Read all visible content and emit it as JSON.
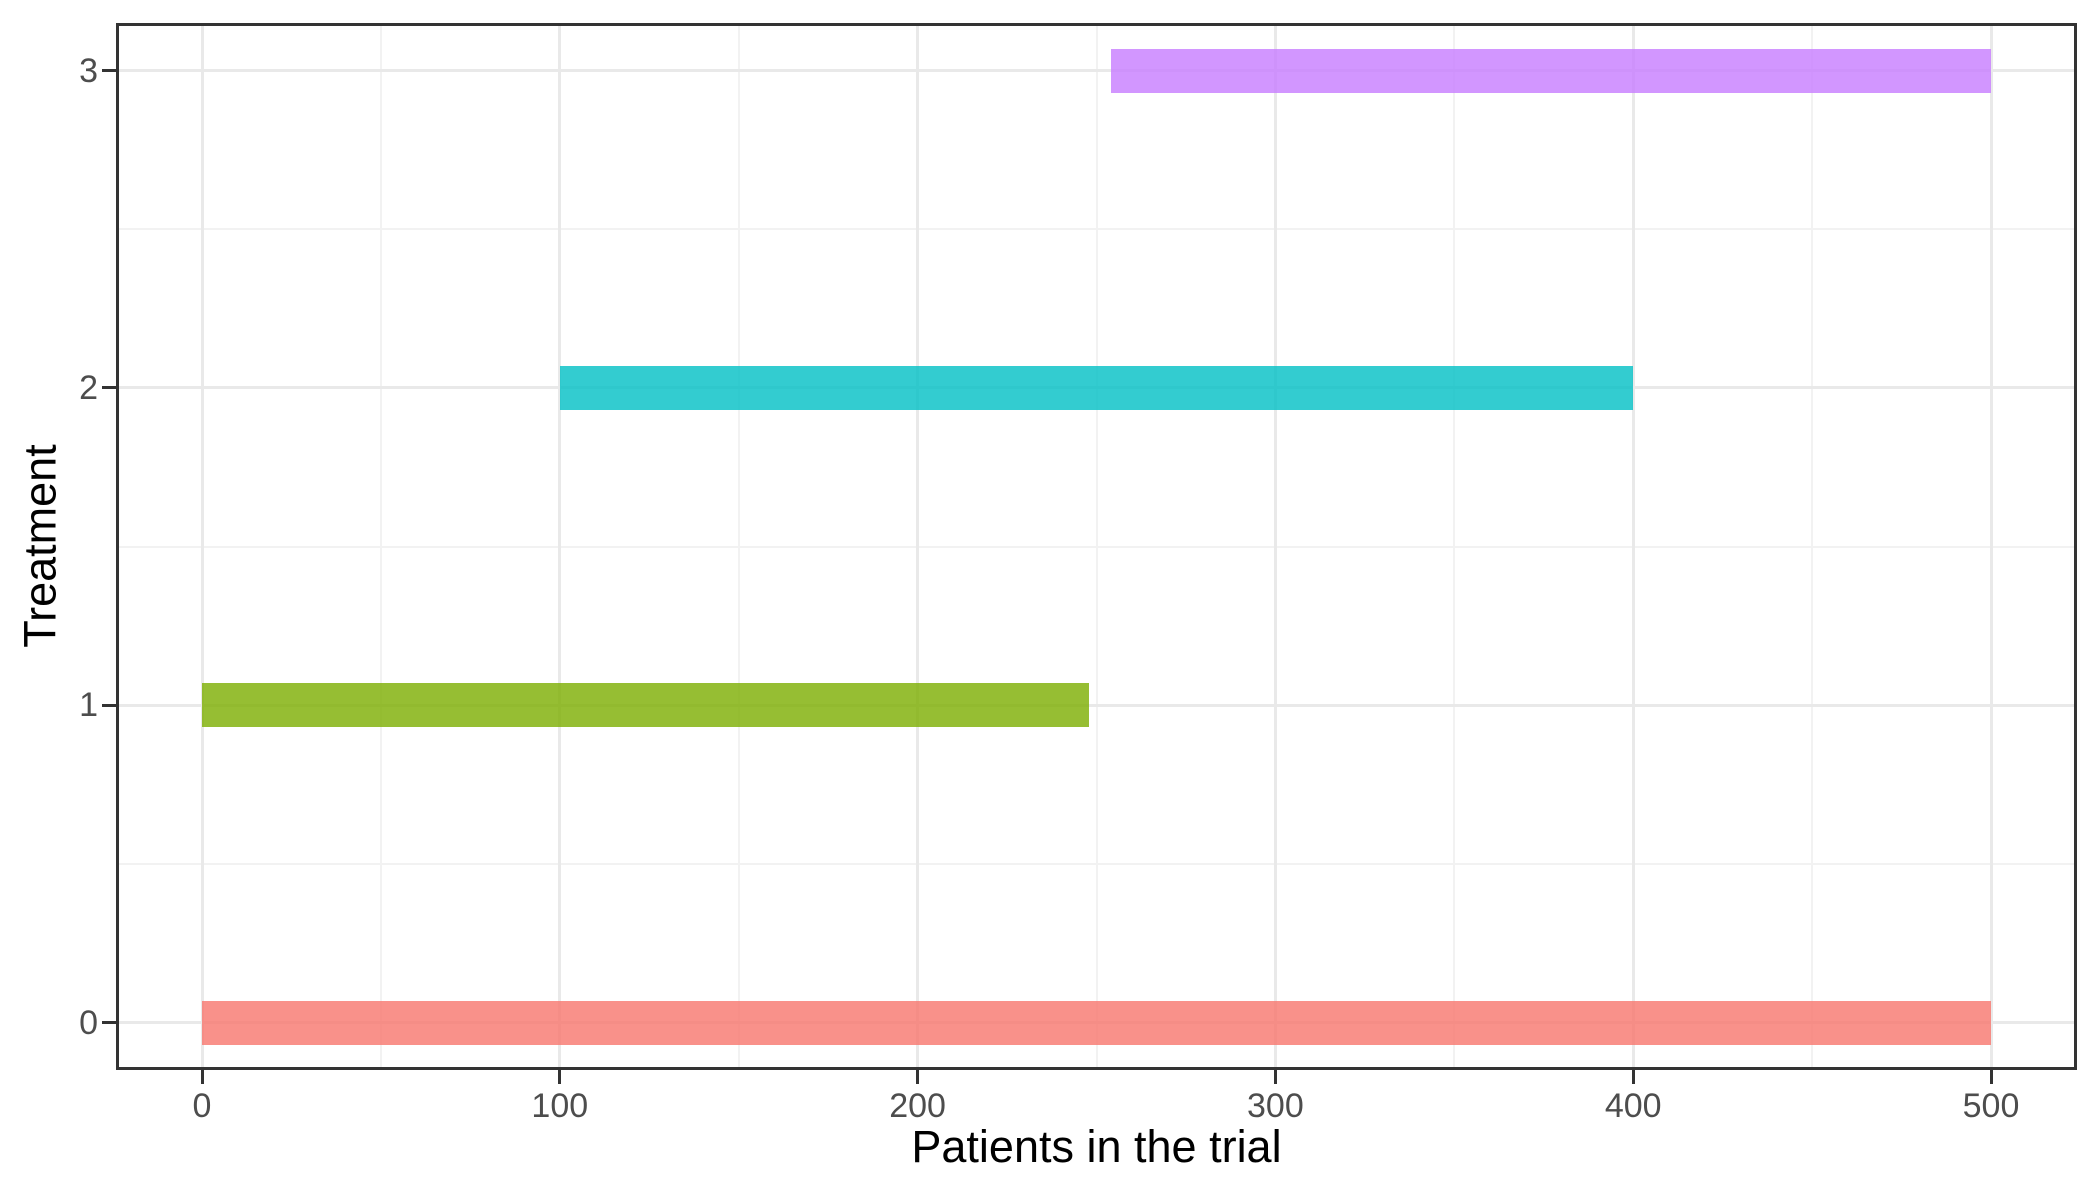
{
  "chart_data": {
    "type": "bar",
    "orientation": "horizontal",
    "title": "",
    "xlabel": "Patients in the trial",
    "ylabel": "Treatment",
    "x_ticks": [
      0,
      100,
      200,
      300,
      400,
      500
    ],
    "y_ticks": [
      0,
      1,
      2,
      3
    ],
    "xlim": [
      0,
      500
    ],
    "ylim": [
      0,
      3
    ],
    "expansion": "5% on both axes (ggplot default)",
    "grid": "major and minor gridlines, light grey on white panel, dark panel border (theme_bw style)",
    "legend": "none",
    "bar_alpha": 0.8,
    "bar_thickness_units": 0.14,
    "segments": [
      {
        "treatment": 0,
        "start": 0,
        "end": 500,
        "color": "#F8766D"
      },
      {
        "treatment": 1,
        "start": 0,
        "end": 248,
        "color": "#7CAE00"
      },
      {
        "treatment": 2,
        "start": 100,
        "end": 400,
        "color": "#00BFC4"
      },
      {
        "treatment": 3,
        "start": 254,
        "end": 500,
        "color": "#C77CFF"
      }
    ]
  },
  "style": {
    "background": "#FFFFFF",
    "panel_border": "#333333",
    "grid_major": "#E9E9E9",
    "grid_minor": "#F2F2F2",
    "tick_color": "#333333",
    "tick_label_color": "#4D4D4D",
    "axis_title_color": "#000000"
  }
}
